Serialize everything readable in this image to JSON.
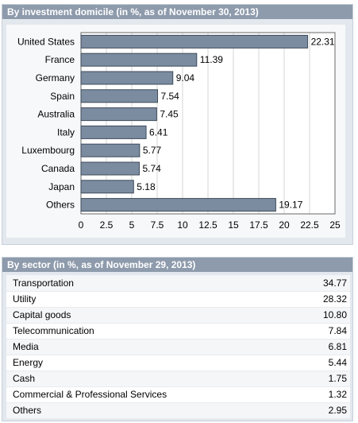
{
  "domicile": {
    "title": "By investment domicile (in %, as of November 30, 2013)"
  },
  "sector": {
    "title": "By sector (in %, as of November 29, 2013)",
    "rows": [
      {
        "label": "Transportation",
        "value": "34.77"
      },
      {
        "label": "Utility",
        "value": "28.32"
      },
      {
        "label": "Capital goods",
        "value": "10.80"
      },
      {
        "label": "Telecommunication",
        "value": "7.84"
      },
      {
        "label": "Media",
        "value": "6.81"
      },
      {
        "label": "Energy",
        "value": "5.44"
      },
      {
        "label": "Cash",
        "value": "1.75"
      },
      {
        "label": "Commercial & Professional Services",
        "value": "1.32"
      },
      {
        "label": "Others",
        "value": "2.95"
      }
    ]
  },
  "chart_data": {
    "type": "bar",
    "orientation": "horizontal",
    "categories": [
      "United States",
      "France",
      "Germany",
      "Spain",
      "Australia",
      "Italy",
      "Luxembourg",
      "Canada",
      "Japan",
      "Others"
    ],
    "values": [
      22.31,
      11.39,
      9.04,
      7.54,
      7.45,
      6.41,
      5.77,
      5.74,
      5.18,
      19.17
    ],
    "value_labels": [
      "22.31",
      "11.39",
      "9.04",
      "7.54",
      "7.45",
      "6.41",
      "5.77",
      "5.74",
      "5.18",
      "19.17"
    ],
    "xlim": [
      0,
      25
    ],
    "xticks": [
      "0",
      "2.5",
      "5",
      "7.5",
      "10",
      "12.5",
      "15",
      "17.5",
      "20",
      "22.5",
      "25"
    ],
    "xtick_values": [
      0,
      2.5,
      5,
      7.5,
      10,
      12.5,
      15,
      17.5,
      20,
      22.5,
      25
    ],
    "grid": "vertical",
    "bar_color": "#7b8ba0"
  }
}
